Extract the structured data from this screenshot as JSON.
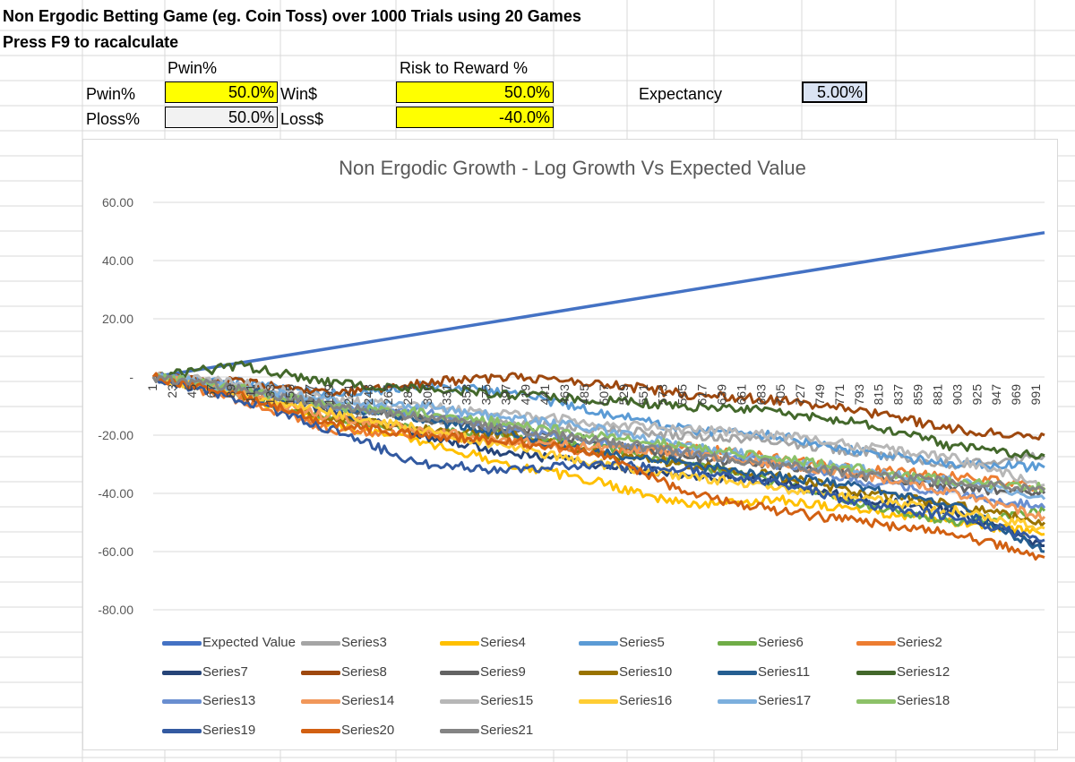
{
  "sheet": {
    "title": "Non Ergodic Betting Game (eg. Coin Toss) over 1000 Trials using 20 Games",
    "subtitle": "Press F9 to racalculate",
    "header_pwin": "Pwin%",
    "header_risk": "Risk to Reward  %",
    "pwin_label": "Pwin%",
    "pwin_value": "50.0%",
    "ploss_label": "Ploss%",
    "ploss_value": "50.0%",
    "win_label": "Win$",
    "win_value": "50.0%",
    "loss_label": "Loss$",
    "loss_value": "-40.0%",
    "expectancy_label": "Expectancy",
    "expectancy_value": "5.00%",
    "colors": {
      "input_yellow": "#ffff00",
      "ploss_gray": "#f2f2f2",
      "expectancy_fill": "#dae3f3",
      "gridline": "#d9d9d9"
    }
  },
  "chart_data": {
    "type": "line",
    "title": "Non Ergodic Growth - Log Growth Vs Expected Value",
    "xlabel": "",
    "ylabel": "",
    "ylim": [
      -80,
      60
    ],
    "y_ticks": [
      "60.00",
      "40.00",
      "20.00",
      "-",
      "-20.00",
      "-40.00",
      "-60.00",
      "-80.00"
    ],
    "y_tick_values": [
      60,
      40,
      20,
      0,
      -20,
      -40,
      -60,
      -80
    ],
    "x_range": [
      1,
      1000
    ],
    "x_ticks": [
      "1",
      "23",
      "45",
      "67",
      "89",
      "111",
      "133",
      "155",
      "177",
      "199",
      "221",
      "243",
      "265",
      "287",
      "309",
      "331",
      "353",
      "375",
      "397",
      "419",
      "441",
      "463",
      "485",
      "507",
      "529",
      "551",
      "573",
      "595",
      "617",
      "639",
      "661",
      "683",
      "705",
      "727",
      "749",
      "771",
      "793",
      "815",
      "837",
      "859",
      "881",
      "903",
      "925",
      "947",
      "969",
      "991"
    ],
    "grid": true,
    "legend_position": "bottom",
    "series": [
      {
        "name": "Expected Value",
        "color": "#4472c4",
        "points": [
          [
            1,
            0
          ],
          [
            1000,
            49.6
          ]
        ]
      },
      {
        "name": "Series3",
        "color": "#a5a5a5",
        "points": [
          [
            1,
            0
          ],
          [
            100,
            -4
          ],
          [
            200,
            -10
          ],
          [
            300,
            -14
          ],
          [
            400,
            -16
          ],
          [
            500,
            -18
          ],
          [
            600,
            -20
          ],
          [
            700,
            -22
          ],
          [
            800,
            -26
          ],
          [
            900,
            -30
          ],
          [
            1000,
            -27
          ]
        ]
      },
      {
        "name": "Series4",
        "color": "#ffc000",
        "points": [
          [
            1,
            0
          ],
          [
            100,
            -6
          ],
          [
            200,
            -16
          ],
          [
            300,
            -22
          ],
          [
            400,
            -30
          ],
          [
            500,
            -36
          ],
          [
            600,
            -44
          ],
          [
            700,
            -42
          ],
          [
            800,
            -46
          ],
          [
            900,
            -50
          ],
          [
            1000,
            -54
          ]
        ]
      },
      {
        "name": "Series5",
        "color": "#5b9bd5",
        "points": [
          [
            1,
            0
          ],
          [
            100,
            -2
          ],
          [
            200,
            -6
          ],
          [
            300,
            -3
          ],
          [
            400,
            -5
          ],
          [
            500,
            -12
          ],
          [
            600,
            -18
          ],
          [
            700,
            -20
          ],
          [
            800,
            -26
          ],
          [
            900,
            -30
          ],
          [
            1000,
            -31
          ]
        ]
      },
      {
        "name": "Series6",
        "color": "#70ad47",
        "points": [
          [
            1,
            0
          ],
          [
            100,
            -6
          ],
          [
            200,
            -14
          ],
          [
            300,
            -18
          ],
          [
            400,
            -20
          ],
          [
            500,
            -24
          ],
          [
            600,
            -30
          ],
          [
            700,
            -36
          ],
          [
            800,
            -44
          ],
          [
            900,
            -50
          ],
          [
            1000,
            -46
          ]
        ]
      },
      {
        "name": "Series2",
        "color": "#ed7d31",
        "points": [
          [
            1,
            0
          ],
          [
            100,
            -8
          ],
          [
            200,
            -18
          ],
          [
            300,
            -20
          ],
          [
            400,
            -22
          ],
          [
            500,
            -26
          ],
          [
            600,
            -24
          ],
          [
            700,
            -28
          ],
          [
            800,
            -32
          ],
          [
            900,
            -34
          ],
          [
            1000,
            -38
          ]
        ]
      },
      {
        "name": "Series7",
        "color": "#264478",
        "points": [
          [
            1,
            0
          ],
          [
            100,
            -4
          ],
          [
            200,
            -12
          ],
          [
            300,
            -20
          ],
          [
            400,
            -26
          ],
          [
            500,
            -30
          ],
          [
            600,
            -34
          ],
          [
            700,
            -36
          ],
          [
            800,
            -42
          ],
          [
            900,
            -46
          ],
          [
            1000,
            -58
          ]
        ]
      },
      {
        "name": "Series8",
        "color": "#9e480e",
        "points": [
          [
            1,
            0
          ],
          [
            100,
            -2
          ],
          [
            200,
            -6
          ],
          [
            300,
            -2
          ],
          [
            400,
            0
          ],
          [
            500,
            -2
          ],
          [
            600,
            -6
          ],
          [
            700,
            -8
          ],
          [
            800,
            -12
          ],
          [
            900,
            -18
          ],
          [
            1000,
            -20
          ]
        ]
      },
      {
        "name": "Series9",
        "color": "#636363",
        "points": [
          [
            1,
            0
          ],
          [
            100,
            -4
          ],
          [
            200,
            -10
          ],
          [
            300,
            -14
          ],
          [
            400,
            -18
          ],
          [
            500,
            -22
          ],
          [
            600,
            -28
          ],
          [
            700,
            -30
          ],
          [
            800,
            -34
          ],
          [
            900,
            -38
          ],
          [
            1000,
            -40
          ]
        ]
      },
      {
        "name": "Series10",
        "color": "#997300",
        "points": [
          [
            1,
            0
          ],
          [
            100,
            -6
          ],
          [
            200,
            -14
          ],
          [
            300,
            -18
          ],
          [
            400,
            -20
          ],
          [
            500,
            -26
          ],
          [
            600,
            -30
          ],
          [
            700,
            -34
          ],
          [
            800,
            -40
          ],
          [
            900,
            -44
          ],
          [
            1000,
            -50
          ]
        ]
      },
      {
        "name": "Series11",
        "color": "#255e91",
        "points": [
          [
            1,
            0
          ],
          [
            100,
            -4
          ],
          [
            200,
            -10
          ],
          [
            300,
            -14
          ],
          [
            400,
            -20
          ],
          [
            500,
            -26
          ],
          [
            600,
            -30
          ],
          [
            700,
            -34
          ],
          [
            800,
            -38
          ],
          [
            900,
            -44
          ],
          [
            1000,
            -60
          ]
        ]
      },
      {
        "name": "Series12",
        "color": "#43682b",
        "points": [
          [
            1,
            0
          ],
          [
            100,
            4
          ],
          [
            200,
            -2
          ],
          [
            300,
            -4
          ],
          [
            400,
            -6
          ],
          [
            500,
            -8
          ],
          [
            600,
            -10
          ],
          [
            700,
            -12
          ],
          [
            800,
            -16
          ],
          [
            900,
            -24
          ],
          [
            1000,
            -27
          ]
        ]
      },
      {
        "name": "Series13",
        "color": "#698ed0",
        "points": [
          [
            1,
            0
          ],
          [
            100,
            -4
          ],
          [
            200,
            -10
          ],
          [
            300,
            -12
          ],
          [
            400,
            -18
          ],
          [
            500,
            -22
          ],
          [
            600,
            -26
          ],
          [
            700,
            -30
          ],
          [
            800,
            -36
          ],
          [
            900,
            -40
          ],
          [
            1000,
            -45
          ]
        ]
      },
      {
        "name": "Series14",
        "color": "#f1975a",
        "points": [
          [
            1,
            0
          ],
          [
            100,
            -6
          ],
          [
            200,
            -14
          ],
          [
            300,
            -18
          ],
          [
            400,
            -22
          ],
          [
            500,
            -24
          ],
          [
            600,
            -26
          ],
          [
            700,
            -30
          ],
          [
            800,
            -34
          ],
          [
            900,
            -40
          ],
          [
            1000,
            -48
          ]
        ]
      },
      {
        "name": "Series15",
        "color": "#b7b7b7",
        "points": [
          [
            1,
            0
          ],
          [
            100,
            -2
          ],
          [
            200,
            -8
          ],
          [
            300,
            -10
          ],
          [
            400,
            -12
          ],
          [
            500,
            -16
          ],
          [
            600,
            -18
          ],
          [
            700,
            -20
          ],
          [
            800,
            -24
          ],
          [
            900,
            -28
          ],
          [
            1000,
            -37
          ]
        ]
      },
      {
        "name": "Series16",
        "color": "#ffcd33",
        "points": [
          [
            1,
            0
          ],
          [
            100,
            -6
          ],
          [
            200,
            -12
          ],
          [
            300,
            -18
          ],
          [
            400,
            -24
          ],
          [
            500,
            -30
          ],
          [
            600,
            -34
          ],
          [
            700,
            -38
          ],
          [
            800,
            -42
          ],
          [
            900,
            -46
          ],
          [
            1000,
            -52
          ]
        ]
      },
      {
        "name": "Series17",
        "color": "#7cafdd",
        "points": [
          [
            1,
            0
          ],
          [
            100,
            -4
          ],
          [
            200,
            -8
          ],
          [
            300,
            -10
          ],
          [
            400,
            -14
          ],
          [
            500,
            -18
          ],
          [
            600,
            -24
          ],
          [
            700,
            -28
          ],
          [
            800,
            -32
          ],
          [
            900,
            -36
          ],
          [
            1000,
            -42
          ]
        ]
      },
      {
        "name": "Series18",
        "color": "#8cc168",
        "points": [
          [
            1,
            0
          ],
          [
            100,
            -4
          ],
          [
            200,
            -10
          ],
          [
            300,
            -12
          ],
          [
            400,
            -16
          ],
          [
            500,
            -20
          ],
          [
            600,
            -24
          ],
          [
            700,
            -28
          ],
          [
            800,
            -32
          ],
          [
            900,
            -36
          ],
          [
            1000,
            -38
          ]
        ]
      },
      {
        "name": "Series19",
        "color": "#335aa1",
        "points": [
          [
            1,
            0
          ],
          [
            100,
            -8
          ],
          [
            200,
            -18
          ],
          [
            300,
            -30
          ],
          [
            400,
            -32
          ],
          [
            500,
            -30
          ],
          [
            600,
            -32
          ],
          [
            700,
            -36
          ],
          [
            800,
            -44
          ],
          [
            900,
            -48
          ],
          [
            1000,
            -56
          ]
        ]
      },
      {
        "name": "Series20",
        "color": "#d26012",
        "points": [
          [
            1,
            0
          ],
          [
            100,
            -6
          ],
          [
            200,
            -16
          ],
          [
            300,
            -20
          ],
          [
            400,
            -22
          ],
          [
            500,
            -26
          ],
          [
            600,
            -40
          ],
          [
            700,
            -46
          ],
          [
            800,
            -50
          ],
          [
            900,
            -54
          ],
          [
            1000,
            -62
          ]
        ]
      },
      {
        "name": "Series21",
        "color": "#848484",
        "points": [
          [
            1,
            0
          ],
          [
            100,
            -4
          ],
          [
            200,
            -10
          ],
          [
            300,
            -14
          ],
          [
            400,
            -18
          ],
          [
            500,
            -22
          ],
          [
            600,
            -26
          ],
          [
            700,
            -30
          ],
          [
            800,
            -34
          ],
          [
            900,
            -36
          ],
          [
            1000,
            -39
          ]
        ]
      }
    ]
  }
}
